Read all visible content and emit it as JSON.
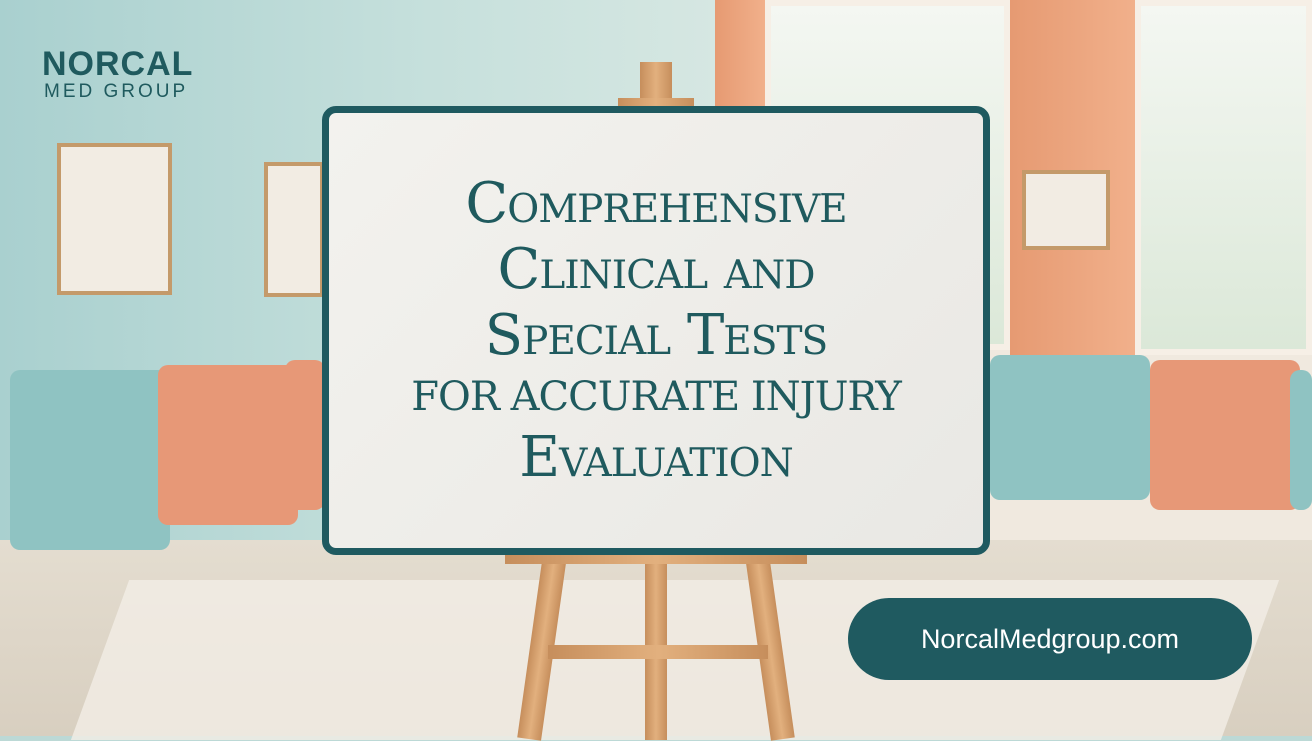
{
  "logo": {
    "line1": "NORCAL",
    "line2": "MED GROUP"
  },
  "sign": {
    "lines": [
      "Comprehensive",
      "Clinical and",
      "Special Tests",
      "for Accurate Injury",
      "Evaluation"
    ]
  },
  "cta": {
    "label": "NorcalMedgroup.com"
  },
  "colors": {
    "brand": "#1f5a60",
    "sign_bg": "#f0efeb",
    "accent": "#e69a72",
    "wall": "#b5d6d4"
  }
}
